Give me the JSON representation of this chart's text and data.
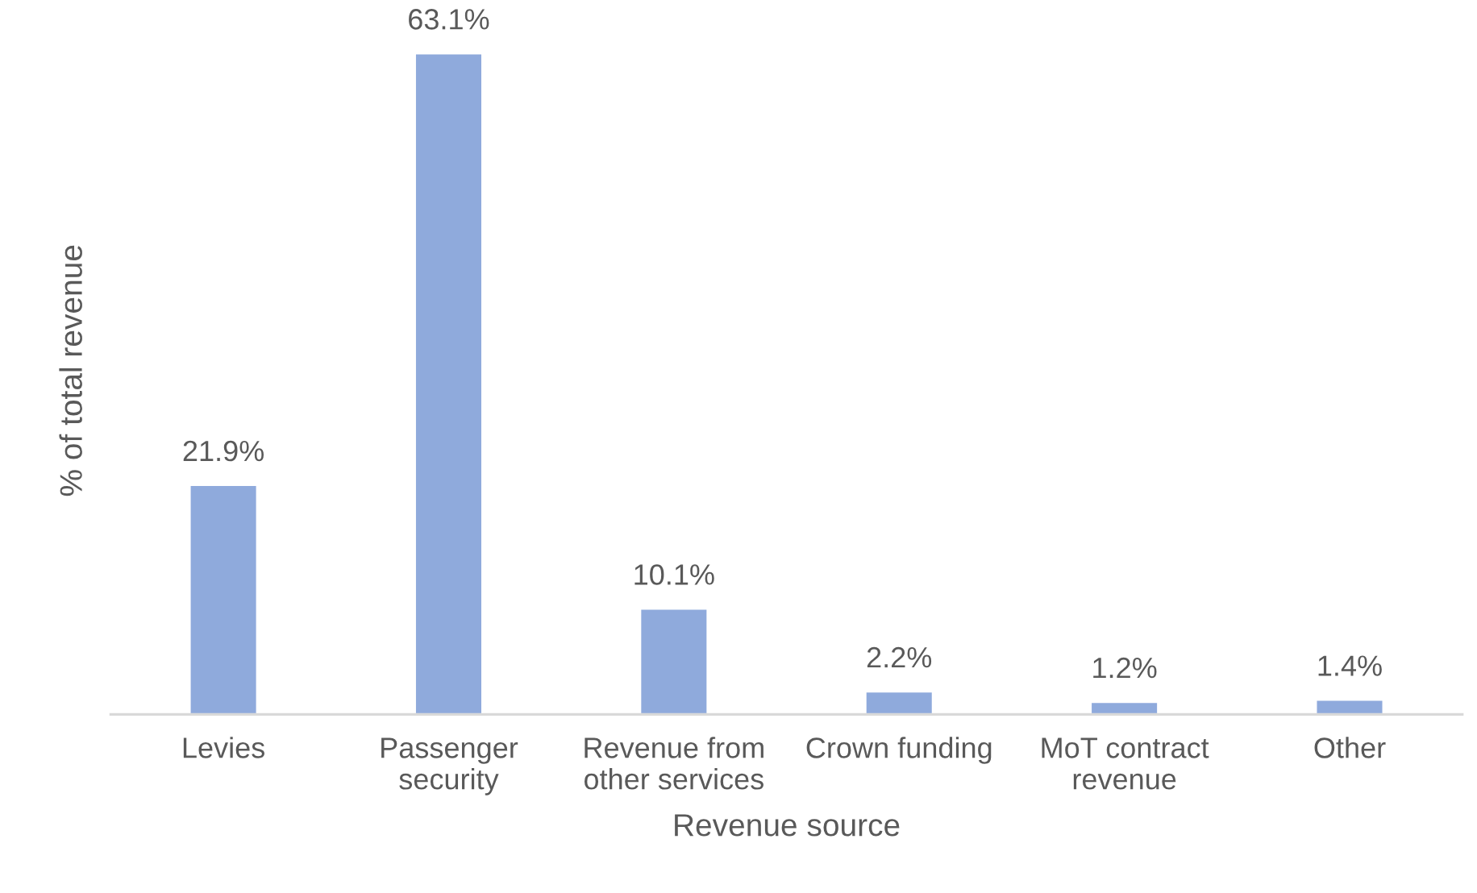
{
  "chart_data": {
    "type": "bar",
    "xlabel": "Revenue source",
    "ylabel": "% of total revenue",
    "categories": [
      "Levies",
      "Passenger security",
      "Revenue from other services",
      "Crown funding",
      "MoT contract revenue",
      "Other"
    ],
    "values": [
      21.9,
      63.1,
      10.1,
      2.2,
      1.2,
      1.4
    ],
    "value_labels": [
      "21.9%",
      "63.1%",
      "10.1%",
      "2.2%",
      "1.2%",
      "1.4%"
    ],
    "color": "#8faadc",
    "grid": false,
    "legend": false,
    "tick_labels": "x"
  }
}
